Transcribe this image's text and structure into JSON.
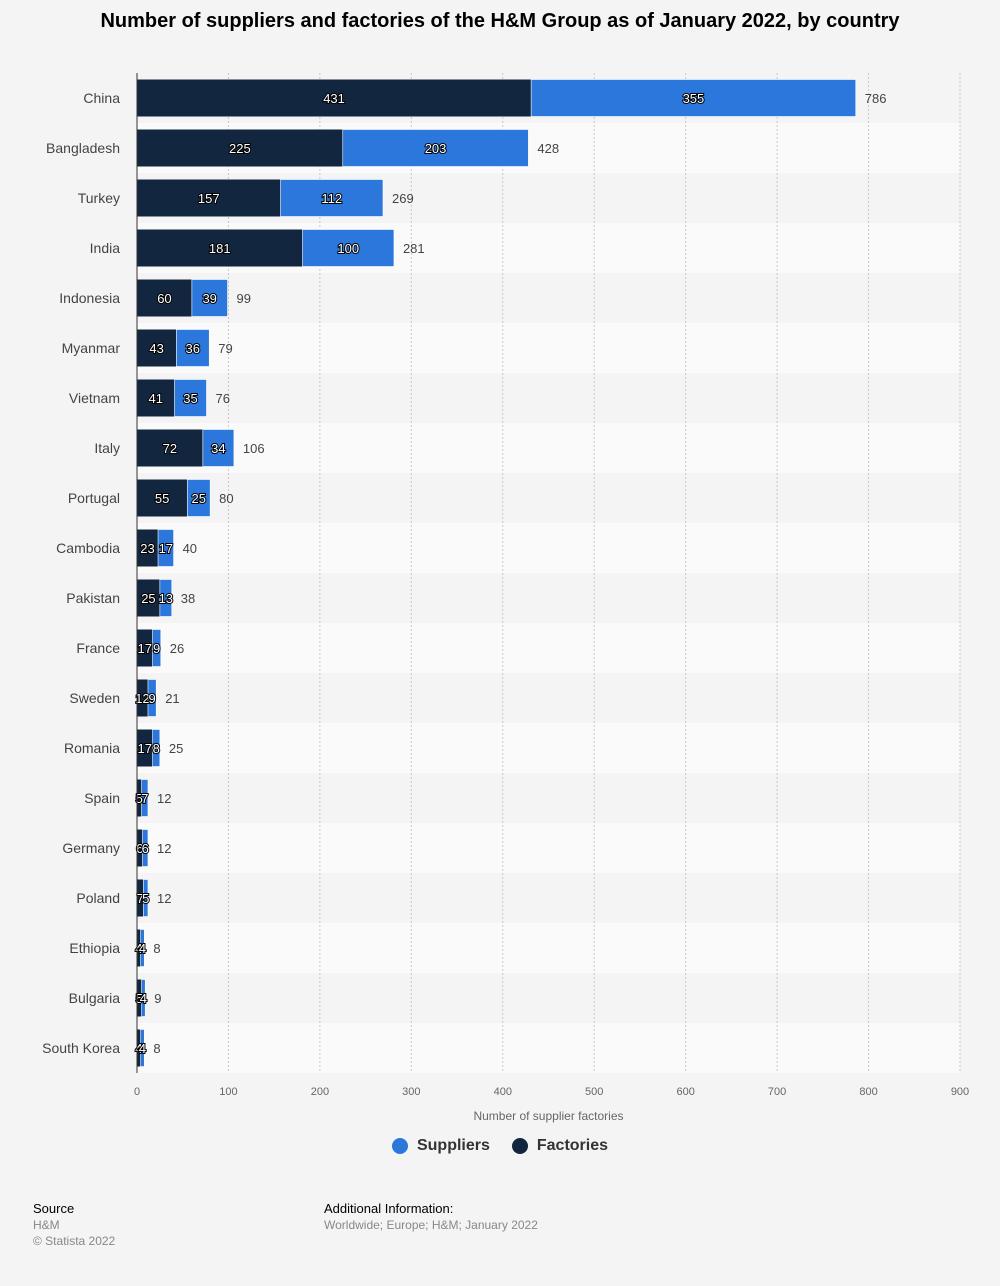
{
  "chart_data": {
    "type": "bar",
    "orientation": "horizontal",
    "stacked": true,
    "title": "Number of suppliers and factories of the H&M Group as of January 2022, by country",
    "xlabel": "Number of supplier factories",
    "xlim": [
      0,
      900
    ],
    "xticks": [
      0,
      100,
      200,
      300,
      400,
      500,
      600,
      700,
      800,
      900
    ],
    "grid": true,
    "legend_position": "bottom",
    "categories": [
      "China",
      "Bangladesh",
      "Turkey",
      "India",
      "Indonesia",
      "Myanmar",
      "Vietnam",
      "Italy",
      "Portugal",
      "Cambodia",
      "Pakistan",
      "France",
      "Sweden",
      "Romania",
      "Spain",
      "Germany",
      "Poland",
      "Ethiopia",
      "Bulgaria",
      "South Korea"
    ],
    "series": [
      {
        "name": "Factories",
        "color": "#13263f",
        "values": [
          431,
          225,
          157,
          181,
          60,
          43,
          41,
          72,
          55,
          23,
          25,
          17,
          12,
          17,
          5,
          6,
          7,
          4,
          5,
          4
        ]
      },
      {
        "name": "Suppliers",
        "color": "#2c77db",
        "values": [
          355,
          203,
          112,
          100,
          39,
          36,
          35,
          34,
          25,
          17,
          13,
          9,
          9,
          8,
          7,
          6,
          5,
          4,
          4,
          4
        ]
      }
    ],
    "totals": [
      786,
      428,
      269,
      281,
      99,
      79,
      76,
      106,
      80,
      40,
      38,
      26,
      21,
      25,
      12,
      12,
      12,
      8,
      9,
      8
    ]
  },
  "legend": {
    "items": [
      {
        "label": "Suppliers",
        "color": "#2c77db"
      },
      {
        "label": "Factories",
        "color": "#13263f"
      }
    ]
  },
  "footer": {
    "source_heading": "Source",
    "source_lines": [
      "H&M",
      "© Statista 2022"
    ],
    "info_heading": "Additional Information:",
    "info_text": "Worldwide; Europe; H&M; January 2022"
  }
}
